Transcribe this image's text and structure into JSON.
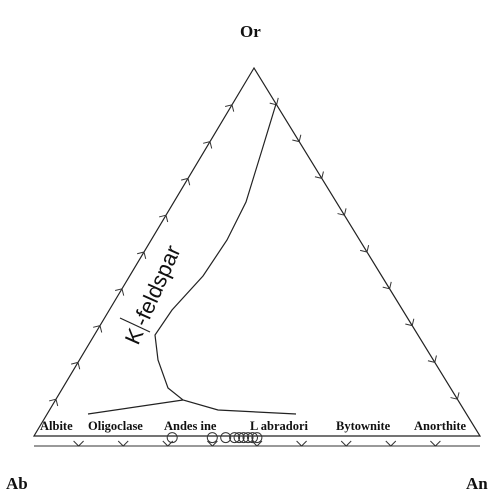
{
  "vertices": {
    "top": "Or",
    "bottom_left": "Ab",
    "bottom_right": "An"
  },
  "field_labels": {
    "kfeldspar_part1": "K",
    "kfeldspar_part2": "-feldspar",
    "albite": "Albite",
    "oligoclase": "Oligoclase",
    "andesine": "Andes ine",
    "labradorite": "L abradori",
    "bytownite": "Bytownite",
    "anorthite": "Anorthite"
  },
  "samples": [
    {
      "ab": 0.68,
      "an": 0.3,
      "or": 0.02
    },
    {
      "ab": 0.59,
      "an": 0.39,
      "or": 0.02
    },
    {
      "ab": 0.56,
      "an": 0.42,
      "or": 0.02
    },
    {
      "ab": 0.54,
      "an": 0.44,
      "or": 0.02
    },
    {
      "ab": 0.53,
      "an": 0.45,
      "or": 0.02
    },
    {
      "ab": 0.52,
      "an": 0.46,
      "or": 0.02
    },
    {
      "ab": 0.51,
      "an": 0.47,
      "or": 0.02
    },
    {
      "ab": 0.5,
      "an": 0.48,
      "or": 0.02
    },
    {
      "ab": 0.49,
      "an": 0.49,
      "or": 0.02
    }
  ]
}
